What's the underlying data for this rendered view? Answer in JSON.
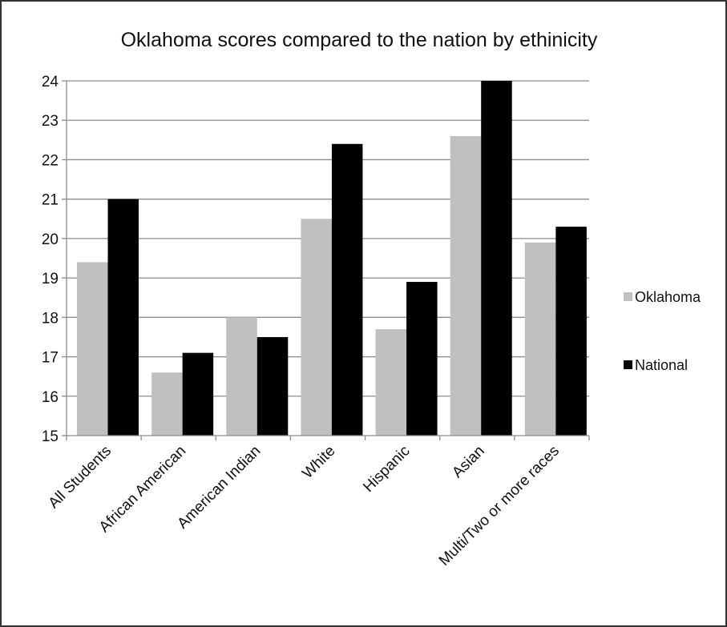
{
  "chart_data": {
    "type": "bar",
    "title": "Oklahoma scores compared to the nation by ethinicity",
    "xlabel": "",
    "ylabel": "",
    "categories": [
      "All Students",
      "African American",
      "American Indian",
      "White",
      "Hispanic",
      "Asian",
      "Multi/Two or more races"
    ],
    "series": [
      {
        "name": "Oklahoma",
        "color": "#c0c0c0",
        "values": [
          19.4,
          16.6,
          18.0,
          20.5,
          17.7,
          22.6,
          19.9
        ]
      },
      {
        "name": "National",
        "color": "#000000",
        "values": [
          21.0,
          17.1,
          17.5,
          22.4,
          18.9,
          24.0,
          20.3
        ]
      }
    ],
    "ylim": [
      15,
      24
    ],
    "yticks": [
      15,
      16,
      17,
      18,
      19,
      20,
      21,
      22,
      23,
      24
    ],
    "grid": true,
    "legend_position": "right"
  }
}
